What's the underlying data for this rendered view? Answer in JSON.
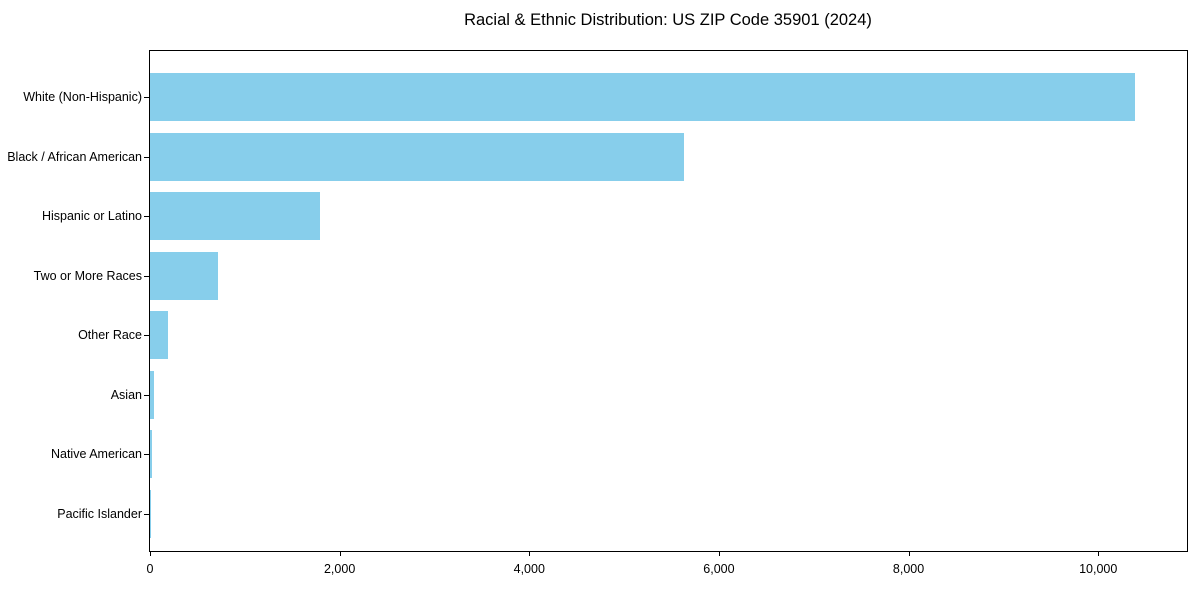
{
  "chart_data": {
    "type": "bar",
    "orientation": "horizontal",
    "title": "Racial & Ethnic Distribution: US ZIP Code 35901 (2024)",
    "categories": [
      "White (Non-Hispanic)",
      "Black / African American",
      "Hispanic or Latino",
      "Two or More Races",
      "Other Race",
      "Asian",
      "Native American",
      "Pacific Islander"
    ],
    "values": [
      10390,
      5630,
      1790,
      715,
      190,
      45,
      20,
      5
    ],
    "xlabel": "",
    "ylabel": "",
    "xlim": [
      0,
      10926
    ],
    "x_ticks": [
      0,
      2000,
      4000,
      6000,
      8000,
      10000
    ],
    "x_tick_labels": [
      "0",
      "2,000",
      "4,000",
      "6,000",
      "8,000",
      "10,000"
    ],
    "bar_color": "#87CEEB",
    "axis_color": "#000000",
    "text_color": "#000000",
    "background": "#FFFFFF",
    "grid": false,
    "legend": false
  }
}
